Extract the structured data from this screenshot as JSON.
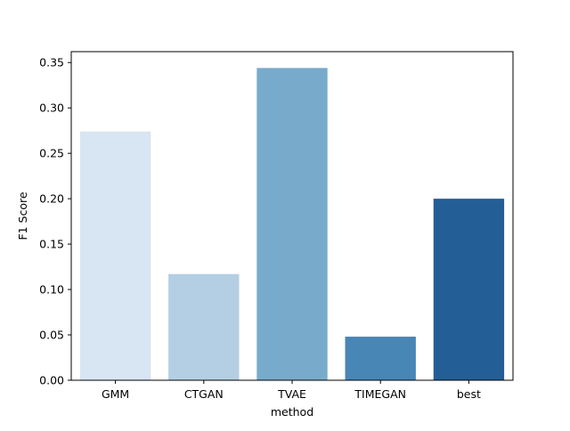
{
  "chart_data": {
    "type": "bar",
    "title": "",
    "xlabel": "method",
    "ylabel": "F1 Score",
    "categories": [
      "GMM",
      "CTGAN",
      "TVAE",
      "TIMEGAN",
      "best"
    ],
    "values": [
      0.274,
      0.117,
      0.344,
      0.048,
      0.2
    ],
    "ylim": [
      0,
      0.362
    ],
    "yticks": [
      0.0,
      0.05,
      0.1,
      0.15,
      0.2,
      0.25,
      0.3,
      0.35
    ],
    "ytick_labels": [
      "0.00",
      "0.05",
      "0.10",
      "0.15",
      "0.20",
      "0.25",
      "0.30",
      "0.35"
    ],
    "colors": [
      "#d8e5f2",
      "#b4cfe3",
      "#78abcb",
      "#4886b6",
      "#235e96"
    ],
    "grid": false,
    "legend": "none"
  }
}
